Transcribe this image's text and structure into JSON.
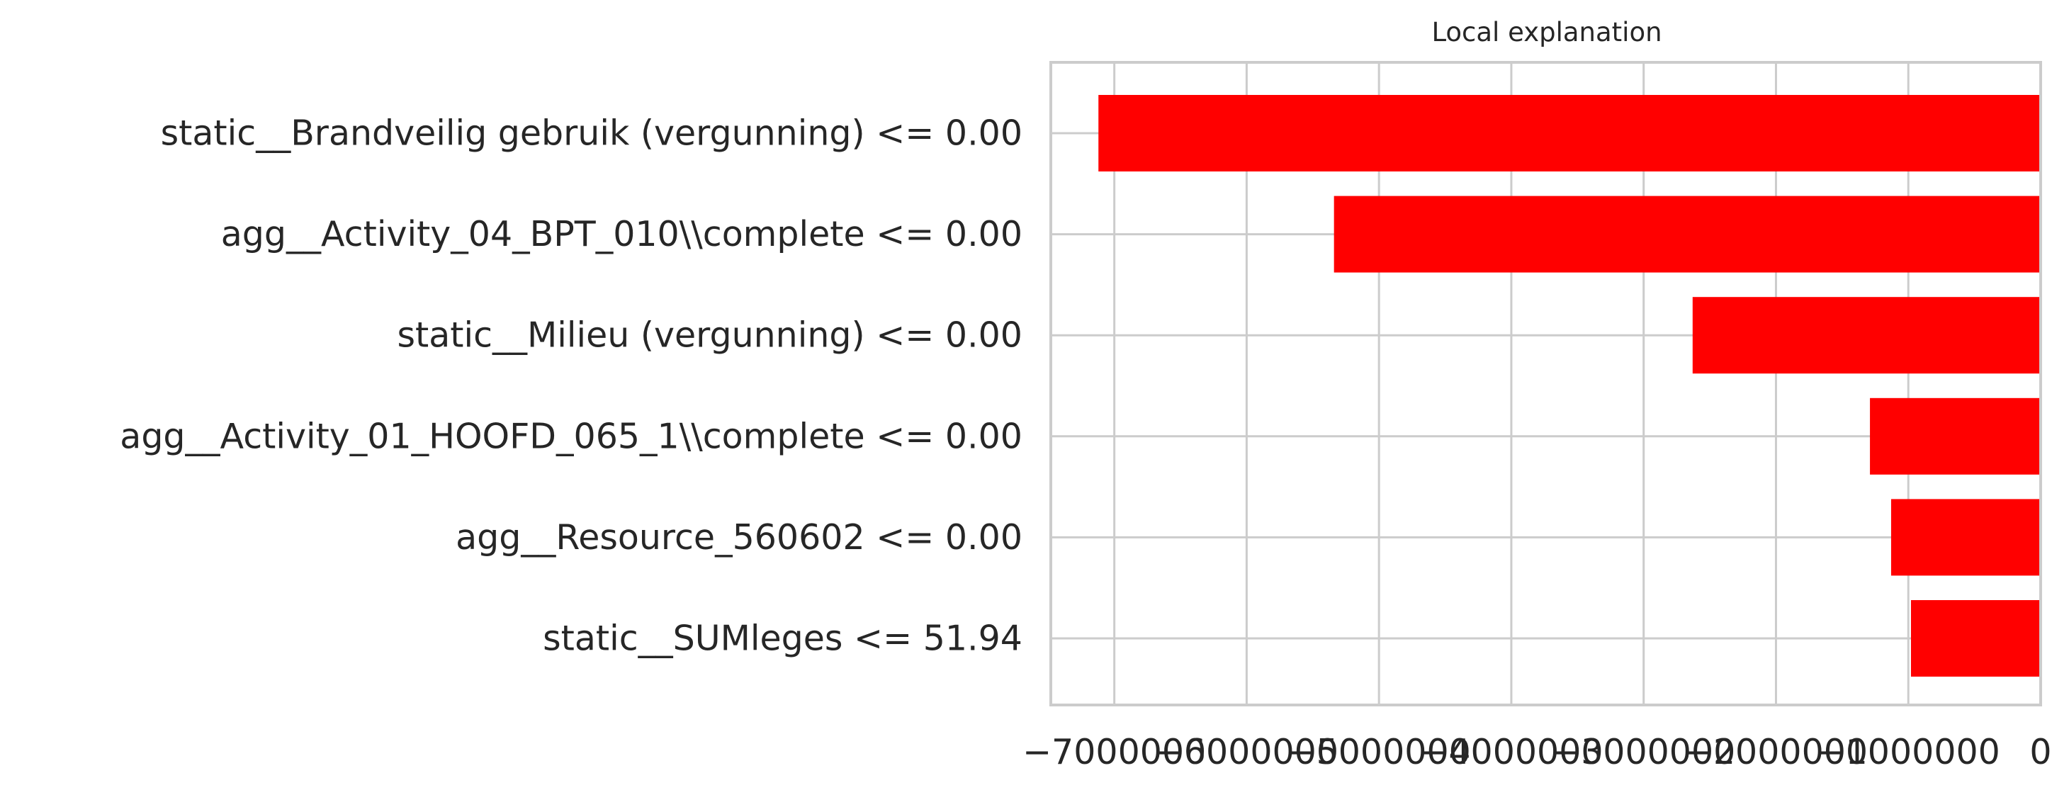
{
  "chart_data": {
    "type": "bar",
    "orientation": "horizontal",
    "title": "Local explanation",
    "xlabel": "",
    "ylabel": "",
    "categories": [
      "static__Brandveilig gebruik (vergunning) <= 0.00",
      "agg__Activity_04_BPT_010\\\\complete <= 0.00",
      "static__Milieu (vergunning) <= 0.00",
      "agg__Activity_01_HOOFD_065_1\\\\complete <= 0.00",
      "agg__Resource_560602 <= 0.00",
      "static__SUMleges <= 51.94"
    ],
    "values": [
      -7120000,
      -5340000,
      -2630000,
      -1290000,
      -1130000,
      -980000
    ],
    "bar_color": "#ff0000",
    "xlim": [
      -7480000,
      0
    ],
    "xticks": [
      -7000000,
      -6000000,
      -5000000,
      -4000000,
      -3000000,
      -2000000,
      -1000000,
      0
    ],
    "xtick_labels": [
      "−7000000",
      "−6000000",
      "−5000000",
      "−4000000",
      "−3000000",
      "−2000000",
      "−1000000",
      "0"
    ],
    "grid": true
  }
}
